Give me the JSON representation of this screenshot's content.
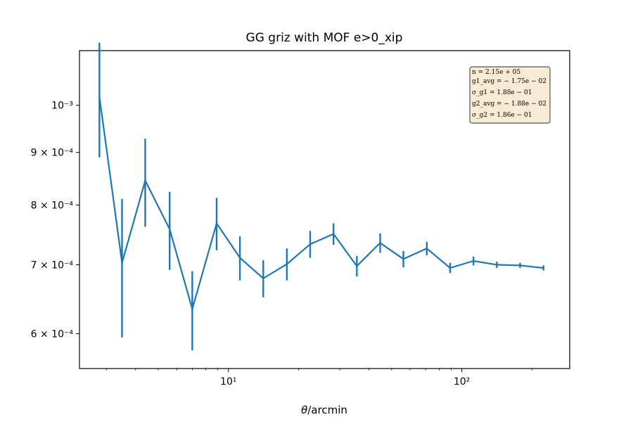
{
  "chart_data": {
    "type": "line",
    "title": "GG griz with MOF e>0_xip",
    "xlabel": "θ/arcmin",
    "ylabel": "",
    "xscale": "log",
    "yscale": "log",
    "xlim": [
      2.3,
      290
    ],
    "ylim": [
      0.000555,
      0.00113
    ],
    "grid": false,
    "color": "#1f77b4",
    "x_ticks": [
      {
        "value": 10,
        "label": "10¹"
      },
      {
        "value": 100,
        "label": "10²"
      }
    ],
    "y_ticks": [
      {
        "value": 0.0006,
        "label": "6 × 10⁻⁴"
      },
      {
        "value": 0.0007,
        "label": "7 × 10⁻⁴"
      },
      {
        "value": 0.0008,
        "label": "8 × 10⁻⁴"
      },
      {
        "value": 0.0009,
        "label": "9 × 10⁻⁴"
      },
      {
        "value": 0.001,
        "label": "10⁻³"
      }
    ],
    "series": [
      {
        "x": [
          2.8,
          3.5,
          4.4,
          5.6,
          7.0,
          8.9,
          11.2,
          14.1,
          17.8,
          22.4,
          28.2,
          35.5,
          44.7,
          56.2,
          70.8,
          89.1,
          112.2,
          141.3,
          177.8,
          223.9
        ],
        "y": [
          0.00102,
          0.000703,
          0.000845,
          0.000758,
          0.000634,
          0.000768,
          0.000711,
          0.000679,
          0.000701,
          0.000733,
          0.00075,
          0.000698,
          0.000735,
          0.000709,
          0.000726,
          0.000695,
          0.000706,
          0.0007,
          0.000699,
          0.000695
        ],
        "yerr": [
          0.00013,
          0.000108,
          8.3e-05,
          6.6e-05,
          5.6e-05,
          4.5e-05,
          3.5e-05,
          2.8e-05,
          2.5e-05,
          2.2e-05,
          1.8e-05,
          1.6e-05,
          1.6e-05,
          1.3e-05,
          1.1e-05,
          8e-06,
          7e-06,
          5e-06,
          4e-06,
          4e-06
        ]
      }
    ],
    "annotation_box": {
      "position": "top-right",
      "lines": [
        "n = 2.15e + 05",
        "g1_avg = − 1.75e − 02",
        "σ_g1 = 1.88e − 01",
        "g2_avg = − 1.88e − 02",
        "σ_g2 = 1.86e − 01"
      ]
    }
  }
}
